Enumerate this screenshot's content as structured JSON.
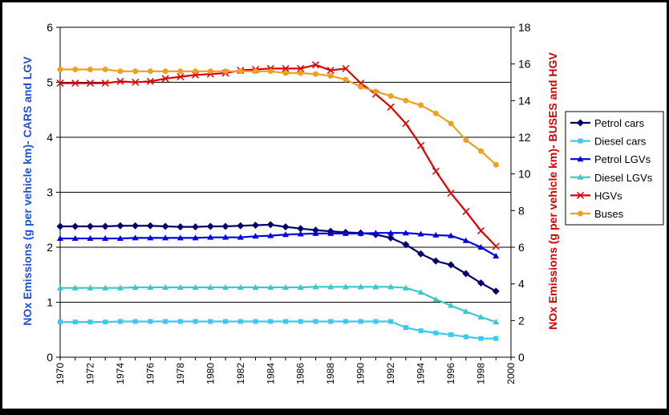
{
  "chart_data": {
    "type": "line",
    "title": "",
    "xlabel": "",
    "ylabel_left": "NOx  Emissions (g per vehicle km)- CARS and LGV",
    "ylabel_right": "NOx  Emissions (g per vehicle km)- BUSES and HGV",
    "x": [
      1970,
      1971,
      1972,
      1973,
      1974,
      1975,
      1976,
      1977,
      1978,
      1979,
      1980,
      1981,
      1982,
      1983,
      1984,
      1985,
      1986,
      1987,
      1988,
      1989,
      1990,
      1991,
      1992,
      1993,
      1994,
      1995,
      1996,
      1997,
      1998,
      1999
    ],
    "xlim": [
      1970,
      2000
    ],
    "x_ticks": [
      "1970",
      "1972",
      "1974",
      "1976",
      "1978",
      "1980",
      "1982",
      "1984",
      "1986",
      "1988",
      "1990",
      "1992",
      "1994",
      "1996",
      "1998",
      "2000"
    ],
    "ylim_left": [
      0,
      6
    ],
    "y_ticks_left": [
      "0",
      "1",
      "2",
      "3",
      "4",
      "5",
      "6"
    ],
    "ylim_right": [
      0,
      18
    ],
    "y_ticks_right": [
      "0",
      "2",
      "4",
      "6",
      "8",
      "10",
      "12",
      "14",
      "16",
      "18"
    ],
    "grid": true,
    "legend_position": "right",
    "series": [
      {
        "name": "Petrol cars",
        "axis": "left",
        "color": "#00006b",
        "marker": "diamond",
        "values": [
          2.38,
          2.38,
          2.38,
          2.38,
          2.39,
          2.39,
          2.39,
          2.38,
          2.37,
          2.37,
          2.38,
          2.38,
          2.39,
          2.4,
          2.41,
          2.37,
          2.34,
          2.31,
          2.29,
          2.27,
          2.26,
          2.23,
          2.17,
          2.05,
          1.88,
          1.75,
          1.68,
          1.52,
          1.35,
          1.2
        ]
      },
      {
        "name": "Diesel cars",
        "axis": "left",
        "color": "#3cc8f0",
        "marker": "square",
        "values": [
          0.64,
          0.64,
          0.64,
          0.64,
          0.65,
          0.65,
          0.65,
          0.65,
          0.65,
          0.65,
          0.65,
          0.65,
          0.65,
          0.65,
          0.65,
          0.65,
          0.65,
          0.65,
          0.65,
          0.65,
          0.65,
          0.65,
          0.65,
          0.54,
          0.48,
          0.44,
          0.41,
          0.37,
          0.34,
          0.34
        ]
      },
      {
        "name": "Petrol LGVs",
        "axis": "left",
        "color": "#0000e0",
        "marker": "triangle",
        "values": [
          2.16,
          2.16,
          2.16,
          2.16,
          2.16,
          2.17,
          2.17,
          2.17,
          2.17,
          2.17,
          2.18,
          2.18,
          2.18,
          2.2,
          2.21,
          2.23,
          2.24,
          2.25,
          2.25,
          2.25,
          2.25,
          2.26,
          2.26,
          2.26,
          2.24,
          2.22,
          2.21,
          2.12,
          2.0,
          1.84
        ]
      },
      {
        "name": "Diesel LGVs",
        "axis": "left",
        "color": "#3cc8c8",
        "marker": "triangle",
        "values": [
          1.26,
          1.26,
          1.26,
          1.26,
          1.26,
          1.27,
          1.27,
          1.27,
          1.27,
          1.27,
          1.27,
          1.27,
          1.27,
          1.27,
          1.27,
          1.27,
          1.27,
          1.28,
          1.28,
          1.28,
          1.28,
          1.28,
          1.28,
          1.26,
          1.18,
          1.05,
          0.94,
          0.83,
          0.73,
          0.64
        ]
      },
      {
        "name": "HGVs",
        "axis": "right",
        "color": "#e00000",
        "marker": "x",
        "values": [
          14.95,
          14.95,
          14.95,
          14.95,
          15.05,
          15.0,
          15.05,
          15.2,
          15.3,
          15.4,
          15.45,
          15.5,
          15.65,
          15.7,
          15.75,
          15.75,
          15.75,
          15.95,
          15.65,
          15.75,
          14.95,
          14.35,
          13.65,
          12.75,
          11.55,
          10.15,
          8.95,
          7.95,
          6.9,
          6.05
        ]
      },
      {
        "name": "Buses",
        "axis": "right",
        "color": "#f0a020",
        "marker": "circle",
        "values": [
          15.7,
          15.7,
          15.7,
          15.7,
          15.6,
          15.6,
          15.6,
          15.6,
          15.6,
          15.6,
          15.6,
          15.6,
          15.6,
          15.6,
          15.6,
          15.5,
          15.5,
          15.45,
          15.35,
          15.15,
          14.75,
          14.5,
          14.25,
          14.0,
          13.75,
          13.3,
          12.75,
          11.85,
          11.25,
          10.5
        ]
      }
    ]
  }
}
